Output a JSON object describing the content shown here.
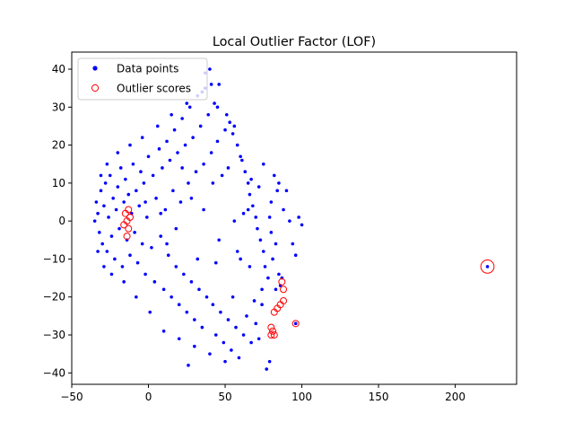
{
  "chart_data": {
    "type": "scatter",
    "title": "Local Outlier Factor (LOF)",
    "xlabel": "",
    "ylabel": "",
    "xlim": [
      -50,
      240
    ],
    "ylim": [
      -43,
      44.5
    ],
    "xticks": [
      -50,
      0,
      50,
      100,
      150,
      200
    ],
    "yticks": [
      -40,
      -30,
      -20,
      -10,
      0,
      10,
      20,
      30,
      40
    ],
    "grid": false,
    "legend": {
      "position": "top-left",
      "entries": [
        "Data points",
        "Outlier scores"
      ]
    },
    "colors": {
      "data_points": "#0000ff",
      "outlier_scores": "#ff0000"
    },
    "series": [
      {
        "name": "Data points",
        "marker": "filled-circle",
        "points": [
          [
            -34,
            5
          ],
          [
            -33,
            2
          ],
          [
            -32,
            -3
          ],
          [
            -35,
            0
          ],
          [
            -31,
            8
          ],
          [
            -30,
            -6
          ],
          [
            -29,
            4
          ],
          [
            -28,
            10
          ],
          [
            -27,
            -8
          ],
          [
            -26,
            1
          ],
          [
            -25,
            12
          ],
          [
            -24,
            -4
          ],
          [
            -23,
            6
          ],
          [
            -22,
            -10
          ],
          [
            -21,
            3
          ],
          [
            -20,
            9
          ],
          [
            -19,
            -2
          ],
          [
            -18,
            14
          ],
          [
            -17,
            -12
          ],
          [
            -16,
            5
          ],
          [
            -15,
            11
          ],
          [
            -14,
            -5
          ],
          [
            -13,
            7
          ],
          [
            -12,
            -9
          ],
          [
            -11,
            2
          ],
          [
            -10,
            15
          ],
          [
            -9,
            -3
          ],
          [
            -8,
            8
          ],
          [
            -7,
            -11
          ],
          [
            -6,
            4
          ],
          [
            -5,
            13
          ],
          [
            -4,
            -6
          ],
          [
            -3,
            10
          ],
          [
            -2,
            -14
          ],
          [
            -1,
            1
          ],
          [
            0,
            17
          ],
          [
            2,
            -7
          ],
          [
            3,
            12
          ],
          [
            4,
            -16
          ],
          [
            5,
            6
          ],
          [
            7,
            19
          ],
          [
            8,
            -4
          ],
          [
            9,
            14
          ],
          [
            10,
            -18
          ],
          [
            11,
            3
          ],
          [
            12,
            21
          ],
          [
            13,
            -9
          ],
          [
            14,
            16
          ],
          [
            15,
            -20
          ],
          [
            16,
            8
          ],
          [
            17,
            24
          ],
          [
            18,
            -12
          ],
          [
            19,
            18
          ],
          [
            20,
            -22
          ],
          [
            21,
            5
          ],
          [
            22,
            27
          ],
          [
            23,
            -14
          ],
          [
            24,
            20
          ],
          [
            25,
            -24
          ],
          [
            26,
            10
          ],
          [
            27,
            30
          ],
          [
            28,
            -16
          ],
          [
            29,
            22
          ],
          [
            30,
            -26
          ],
          [
            31,
            13
          ],
          [
            32,
            33
          ],
          [
            33,
            -18
          ],
          [
            34,
            25
          ],
          [
            35,
            -28
          ],
          [
            36,
            15
          ],
          [
            37,
            35
          ],
          [
            38,
            -20
          ],
          [
            39,
            28
          ],
          [
            40,
            40
          ],
          [
            41,
            18
          ],
          [
            42,
            -22
          ],
          [
            43,
            31
          ],
          [
            44,
            -30
          ],
          [
            45,
            21
          ],
          [
            46,
            36
          ],
          [
            47,
            -24
          ],
          [
            48,
            12
          ],
          [
            49,
            -32
          ],
          [
            50,
            24
          ],
          [
            51,
            28
          ],
          [
            52,
            -26
          ],
          [
            53,
            26
          ],
          [
            54,
            -34
          ],
          [
            55,
            23
          ],
          [
            56,
            25
          ],
          [
            57,
            -28
          ],
          [
            58,
            20
          ],
          [
            59,
            -36
          ],
          [
            60,
            17
          ],
          [
            61,
            16
          ],
          [
            62,
            -30
          ],
          [
            63,
            13
          ],
          [
            64,
            -25
          ],
          [
            65,
            10
          ],
          [
            66,
            7
          ],
          [
            67,
            -32
          ],
          [
            68,
            4
          ],
          [
            69,
            -21
          ],
          [
            70,
            1
          ],
          [
            71,
            -2
          ],
          [
            72,
            -31
          ],
          [
            73,
            -5
          ],
          [
            74,
            -18
          ],
          [
            75,
            -8
          ],
          [
            76,
            -12
          ],
          [
            77,
            -39
          ],
          [
            78,
            -15
          ],
          [
            79,
            -37
          ],
          [
            80,
            5
          ],
          [
            81,
            -10
          ],
          [
            82,
            12
          ],
          [
            83,
            -6
          ],
          [
            84,
            8
          ],
          [
            85,
            -14
          ],
          [
            86,
            -17
          ],
          [
            88,
            3
          ],
          [
            90,
            8
          ],
          [
            92,
            0
          ],
          [
            94,
            -6
          ],
          [
            96,
            -9
          ],
          [
            98,
            1
          ],
          [
            100,
            -1
          ],
          [
            -33,
            -8
          ],
          [
            -31,
            12
          ],
          [
            -29,
            -12
          ],
          [
            -27,
            15
          ],
          [
            -24,
            -14
          ],
          [
            -20,
            18
          ],
          [
            -16,
            -16
          ],
          [
            -12,
            20
          ],
          [
            -8,
            -20
          ],
          [
            -4,
            22
          ],
          [
            1,
            -24
          ],
          [
            6,
            25
          ],
          [
            10,
            -29
          ],
          [
            15,
            28
          ],
          [
            20,
            -31
          ],
          [
            25,
            31
          ],
          [
            30,
            -33
          ],
          [
            35,
            34
          ],
          [
            40,
            -35
          ],
          [
            45,
            30
          ],
          [
            50,
            -37
          ],
          [
            55,
            -20
          ],
          [
            60,
            -10
          ],
          [
            65,
            3
          ],
          [
            70,
            -27
          ],
          [
            75,
            15
          ],
          [
            80,
            -3
          ],
          [
            85,
            10
          ],
          [
            28,
            6
          ],
          [
            18,
            -2
          ],
          [
            8,
            2
          ],
          [
            -2,
            5
          ],
          [
            36,
            3
          ],
          [
            46,
            -5
          ],
          [
            56,
            0
          ],
          [
            66,
            -12
          ],
          [
            42,
            10
          ],
          [
            32,
            -10
          ],
          [
            22,
            14
          ],
          [
            12,
            -6
          ],
          [
            52,
            14
          ],
          [
            62,
            2
          ],
          [
            72,
            9
          ],
          [
            26,
            -38
          ],
          [
            41,
            36
          ],
          [
            37,
            39
          ],
          [
            44,
            -11
          ],
          [
            58,
            -8
          ],
          [
            67,
            11
          ],
          [
            74,
            -22
          ],
          [
            79,
            1
          ],
          [
            83,
            -18
          ],
          [
            87,
            -15
          ],
          [
            96,
            -27
          ],
          [
            221,
            -12
          ]
        ]
      },
      {
        "name": "Outlier scores",
        "marker": "open-circle",
        "points": [
          [
            -15,
            2,
            0.7
          ],
          [
            -14,
            0,
            0.7
          ],
          [
            -13,
            -2,
            0.7
          ],
          [
            -16,
            -1,
            0.7
          ],
          [
            -12,
            1,
            0.7
          ],
          [
            -14,
            -4,
            0.7
          ],
          [
            -13,
            3,
            0.7
          ],
          [
            87,
            -16,
            0.8
          ],
          [
            88,
            -18,
            0.8
          ],
          [
            88,
            -21,
            0.9
          ],
          [
            86,
            -22,
            0.9
          ],
          [
            84,
            -23,
            1.0
          ],
          [
            82,
            -24,
            1.2
          ],
          [
            80,
            -28,
            1.0
          ],
          [
            81,
            -29,
            1.1
          ],
          [
            82,
            -30,
            1.2
          ],
          [
            80,
            -30,
            1.0
          ],
          [
            96,
            -27,
            1.0
          ],
          [
            221,
            -12,
            3.6
          ]
        ]
      }
    ]
  }
}
